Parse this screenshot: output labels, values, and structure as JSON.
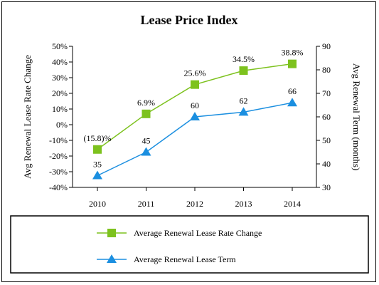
{
  "chart_data": {
    "type": "line",
    "title": "Lease Price Index",
    "categories": [
      "2010",
      "2011",
      "2012",
      "2013",
      "2014"
    ],
    "series": [
      {
        "name": "Average Renewal Lease Rate Change",
        "axis": "left",
        "values": [
          -15.8,
          6.9,
          25.6,
          34.5,
          38.8
        ],
        "labels": [
          "(15.8)%",
          "6.9%",
          "25.6%",
          "34.5%",
          "38.8%"
        ],
        "color": "#7DC21E",
        "marker": "square"
      },
      {
        "name": "Average Renewal Lease Term",
        "axis": "right",
        "values": [
          35,
          45,
          60,
          62,
          66
        ],
        "labels": [
          "35",
          "45",
          "60",
          "62",
          "66"
        ],
        "color": "#1B8FE0",
        "marker": "triangle"
      }
    ],
    "y_left": {
      "label": "Avg Renewal Lease Rate Change",
      "ylim": [
        -40,
        50
      ],
      "ticks": [
        "-40%",
        "-30%",
        "-20%",
        "-10%",
        "0%",
        "10%",
        "20%",
        "30%",
        "40%",
        "50%"
      ]
    },
    "y_right": {
      "label": "Avg Renewal Term (months)",
      "ylim": [
        30,
        90
      ],
      "ticks": [
        "30",
        "40",
        "50",
        "60",
        "70",
        "80",
        "90"
      ]
    },
    "grid": false,
    "legend_position": "bottom"
  }
}
